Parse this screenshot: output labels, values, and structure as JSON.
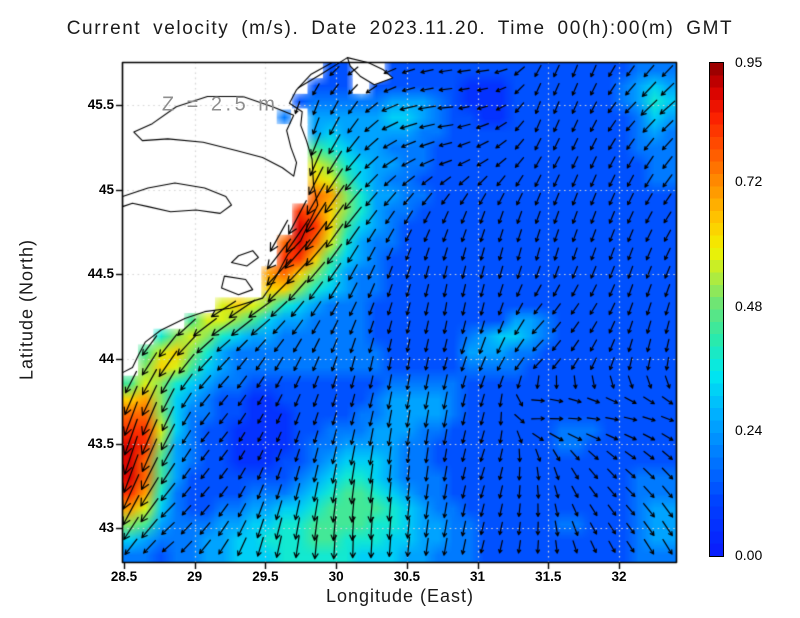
{
  "chart_data": {
    "type": "heatmap",
    "subtype": "quiver-vector-field-over-heatmap",
    "title": "Current velocity (m/s). Date 2023.11.20. Time 00(h):00(m) GMT",
    "xlabel": "Longitude (East)",
    "ylabel": "Latitude (North)",
    "xlim": [
      28.486,
      32.41
    ],
    "ylim": [
      42.796,
      45.754
    ],
    "xticks": [
      28.5,
      29,
      29.5,
      30,
      30.5,
      31,
      31.5,
      32
    ],
    "yticks": [
      43,
      43.5,
      44,
      44.5,
      45,
      45.5
    ],
    "grid": true,
    "legend_position": "right-colorbar",
    "annotation": {
      "text": "Z = 2.5 m",
      "lon": 29.18,
      "lat": 45.5
    },
    "colorbar": {
      "min": 0.0,
      "max": 0.95,
      "ticks": [
        0.0,
        0.24,
        0.48,
        0.72,
        0.95
      ]
    },
    "colormap": [
      [
        0.0,
        "#0a1afc"
      ],
      [
        0.1,
        "#0040ff"
      ],
      [
        0.2,
        "#0080ff"
      ],
      [
        0.28,
        "#00b4ff"
      ],
      [
        0.35,
        "#00e8f0"
      ],
      [
        0.42,
        "#2ceaa8"
      ],
      [
        0.48,
        "#66e47c"
      ],
      [
        0.54,
        "#b4ec3a"
      ],
      [
        0.59,
        "#f2f200"
      ],
      [
        0.65,
        "#ffc400"
      ],
      [
        0.72,
        "#ff8c00"
      ],
      [
        0.79,
        "#ff4e00"
      ],
      [
        0.85,
        "#fb1c00"
      ],
      [
        0.9,
        "#d20000"
      ],
      [
        0.95,
        "#8c0000"
      ]
    ],
    "colors": {
      "land": "#ffffff",
      "coast": "#000000",
      "arrow": "#000000",
      "grid": "#d6d6d6",
      "annotation": "#8f8f8f",
      "frame": "#000000"
    },
    "speed_grid": {
      "nx": 36,
      "ny": 32,
      "encoding": "hex digit 0-f => speed = digit/15*0.95 m/s ; '.' = land",
      "rows": [
        ".............22..2222222222222222333",
        "............222.22222211122222223454",
        "...........2333334443211122222223465",
        "..........3.444445543221122222222354",
        "............454444433222222222222343",
        "............765443332222222222222333",
        "............986544332222222222222233",
        "............a97543322222222222222233",
        "............cb8644332222222222222222",
        "...........dca8643322222222222222222",
        "...........eda7543222222222222222222",
        "..........cec96433222222222222222222",
        "..........dda75432222222222222222222",
        ".........bca864332222222222222222222",
        ".........aa8654332222222222222222222",
        "......9a9865433322222222222222222222",
        "....79987544333322222222244322222222",
        "..6898654433333322222234554322222222",
        ".79a86433333333332222244433222222222",
        ".8a975433333333332222233332222222222",
        "798654332222222223333322222222222222",
        "ab8543221122222234444322222222222222",
        "cc8533221112222334444322222222222222",
        "dd9532211112233344433222222233322222",
        "ed8432211112334444332222222233222222",
        "ec7432211122345554332222222222222222",
        "ec7422222223456654333222222222222333",
        "db6322223334567765433222222222222333",
        "b95322334455677776543322222222222344",
        "874333445566777766544332222233222344",
        "543334455666776665544332222222222344",
        "332334455566666555443332222222222333"
      ]
    },
    "direction_grid": {
      "nx": 13,
      "ny": 11,
      "convention": "degrees, 0=East, 90=North",
      "angles": [
        [
          225,
          225,
          225,
          230,
          230,
          215,
          200,
          190,
          185,
          240,
          250,
          235,
          225
        ],
        [
          225,
          225,
          225,
          240,
          255,
          235,
          195,
          185,
          200,
          250,
          245,
          225,
          220
        ],
        [
          250,
          250,
          250,
          255,
          250,
          230,
          210,
          200,
          215,
          240,
          245,
          240,
          230
        ],
        [
          260,
          260,
          260,
          260,
          240,
          230,
          235,
          245,
          250,
          250,
          250,
          245,
          235
        ],
        [
          250,
          250,
          240,
          230,
          225,
          240,
          250,
          255,
          255,
          255,
          250,
          250,
          245
        ],
        [
          230,
          225,
          210,
          215,
          235,
          245,
          255,
          260,
          255,
          230,
          235,
          250,
          255
        ],
        [
          240,
          235,
          225,
          235,
          245,
          255,
          260,
          255,
          245,
          225,
          240,
          255,
          260
        ],
        [
          250,
          245,
          230,
          240,
          250,
          255,
          260,
          260,
          255,
          10,
          0,
          350,
          340
        ],
        [
          255,
          240,
          230,
          245,
          255,
          260,
          265,
          260,
          250,
          280,
          310,
          320,
          315
        ],
        [
          245,
          225,
          230,
          250,
          260,
          265,
          265,
          260,
          255,
          270,
          300,
          310,
          305
        ],
        [
          230,
          220,
          235,
          255,
          265,
          270,
          265,
          260,
          255,
          265,
          290,
          300,
          300
        ]
      ]
    },
    "coastlines": [
      {
        "name": "main-west-coast",
        "fill": false,
        "close": false,
        "points": [
          [
            29.97,
            45.75
          ],
          [
            29.82,
            45.68
          ],
          [
            29.72,
            45.59
          ],
          [
            29.67,
            45.51
          ],
          [
            29.76,
            45.46
          ],
          [
            29.75,
            45.38
          ],
          [
            29.79,
            45.29
          ],
          [
            29.83,
            45.18
          ],
          [
            29.84,
            45.03
          ],
          [
            29.87,
            44.91
          ],
          [
            29.8,
            44.79
          ],
          [
            29.75,
            44.7
          ],
          [
            29.66,
            44.62
          ],
          [
            29.59,
            44.51
          ],
          [
            29.53,
            44.42
          ],
          [
            29.48,
            44.36
          ],
          [
            29.25,
            44.3
          ],
          [
            29.07,
            44.28
          ],
          [
            28.93,
            44.24
          ],
          [
            28.76,
            44.17
          ],
          [
            28.65,
            44.1
          ],
          [
            28.6,
            44.02
          ],
          [
            28.56,
            43.95
          ],
          [
            28.49,
            43.92
          ]
        ]
      },
      {
        "name": "north-coast-diagonal",
        "fill": false,
        "close": false,
        "points": [
          [
            29.73,
            45.6
          ],
          [
            29.89,
            45.68
          ],
          [
            30.08,
            45.78
          ]
        ]
      },
      {
        "name": "north-peninsula",
        "fill": true,
        "close": true,
        "points": [
          [
            30.08,
            45.78
          ],
          [
            30.23,
            45.75
          ],
          [
            30.33,
            45.71
          ],
          [
            30.4,
            45.66
          ],
          [
            30.27,
            45.62
          ],
          [
            30.17,
            45.67
          ],
          [
            30.1,
            45.73
          ]
        ]
      },
      {
        "name": "danube-lagoon",
        "fill": false,
        "close": true,
        "points": [
          [
            29.7,
            45.44
          ],
          [
            29.55,
            45.49
          ],
          [
            29.34,
            45.55
          ],
          [
            29.09,
            45.55
          ],
          [
            28.87,
            45.49
          ],
          [
            28.7,
            45.39
          ],
          [
            28.57,
            45.34
          ],
          [
            28.63,
            45.29
          ],
          [
            28.81,
            45.3
          ],
          [
            29.06,
            45.28
          ],
          [
            29.3,
            45.23
          ],
          [
            29.48,
            45.19
          ],
          [
            29.62,
            45.13
          ],
          [
            29.7,
            45.08
          ],
          [
            29.72,
            45.16
          ],
          [
            29.68,
            45.25
          ],
          [
            29.65,
            45.35
          ]
        ]
      },
      {
        "name": "inland-lake-contour",
        "fill": false,
        "close": true,
        "points": [
          [
            28.49,
            44.96
          ],
          [
            28.67,
            45.01
          ],
          [
            28.86,
            45.04
          ],
          [
            29.07,
            45.01
          ],
          [
            29.22,
            44.96
          ],
          [
            29.26,
            44.91
          ],
          [
            29.18,
            44.86
          ],
          [
            29.01,
            44.88
          ],
          [
            28.83,
            44.87
          ],
          [
            28.67,
            44.9
          ],
          [
            28.56,
            44.92
          ],
          [
            28.49,
            44.9
          ]
        ]
      },
      {
        "name": "coastal-lake-1",
        "fill": false,
        "close": true,
        "points": [
          [
            29.31,
            44.61
          ],
          [
            29.41,
            44.64
          ],
          [
            29.45,
            44.6
          ],
          [
            29.37,
            44.55
          ],
          [
            29.26,
            44.57
          ]
        ]
      },
      {
        "name": "coastal-lake-2",
        "fill": false,
        "close": true,
        "points": [
          [
            29.21,
            44.49
          ],
          [
            29.36,
            44.47
          ],
          [
            29.41,
            44.41
          ],
          [
            29.31,
            44.38
          ],
          [
            29.19,
            44.42
          ]
        ]
      }
    ]
  }
}
